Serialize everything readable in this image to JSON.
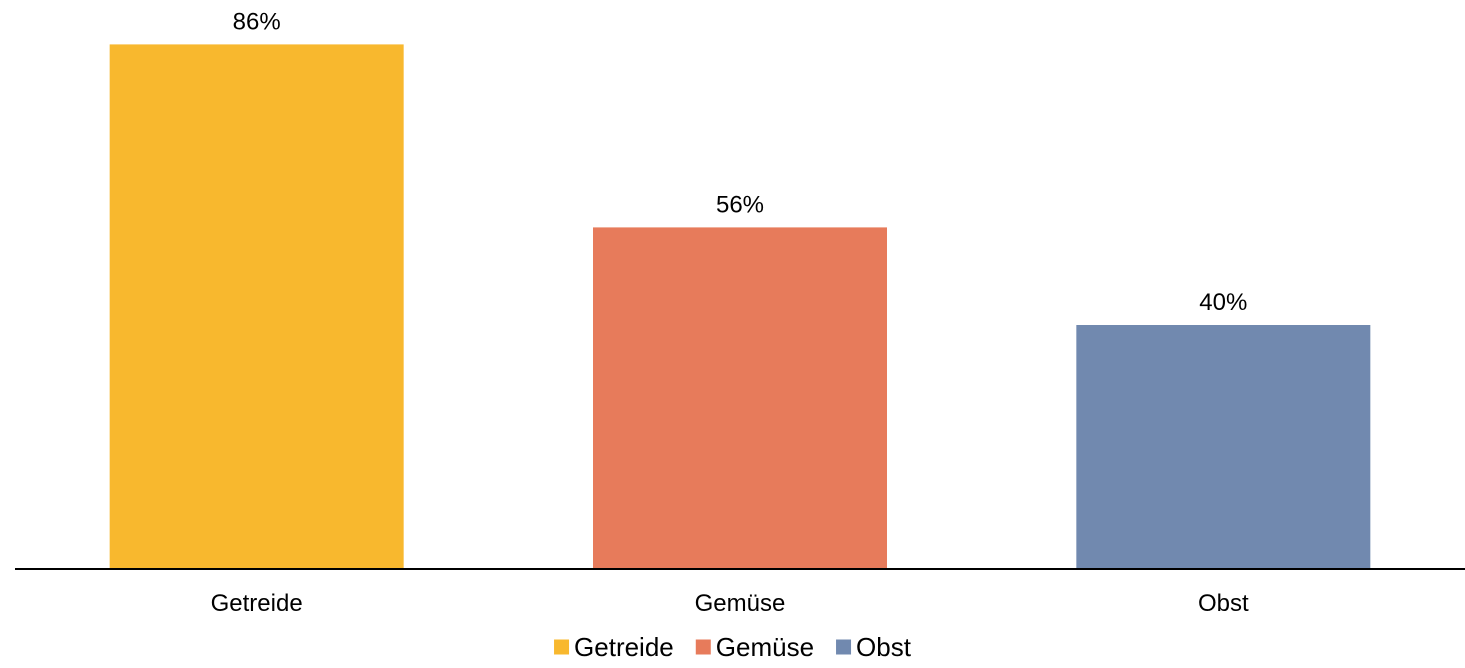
{
  "chart_data": {
    "type": "bar",
    "categories": [
      "Getreide",
      "Gemüse",
      "Obst"
    ],
    "values": [
      86,
      56,
      40
    ],
    "value_labels": [
      "86%",
      "56%",
      "40%"
    ],
    "colors": [
      "#F8B82E",
      "#E77B5B",
      "#7189AF"
    ],
    "ylim": [
      0,
      100
    ],
    "grid": false,
    "legend": {
      "position": "bottom",
      "entries": [
        "Getreide",
        "Gemüse",
        "Obst"
      ]
    },
    "title": "",
    "xlabel": "",
    "ylabel": ""
  }
}
